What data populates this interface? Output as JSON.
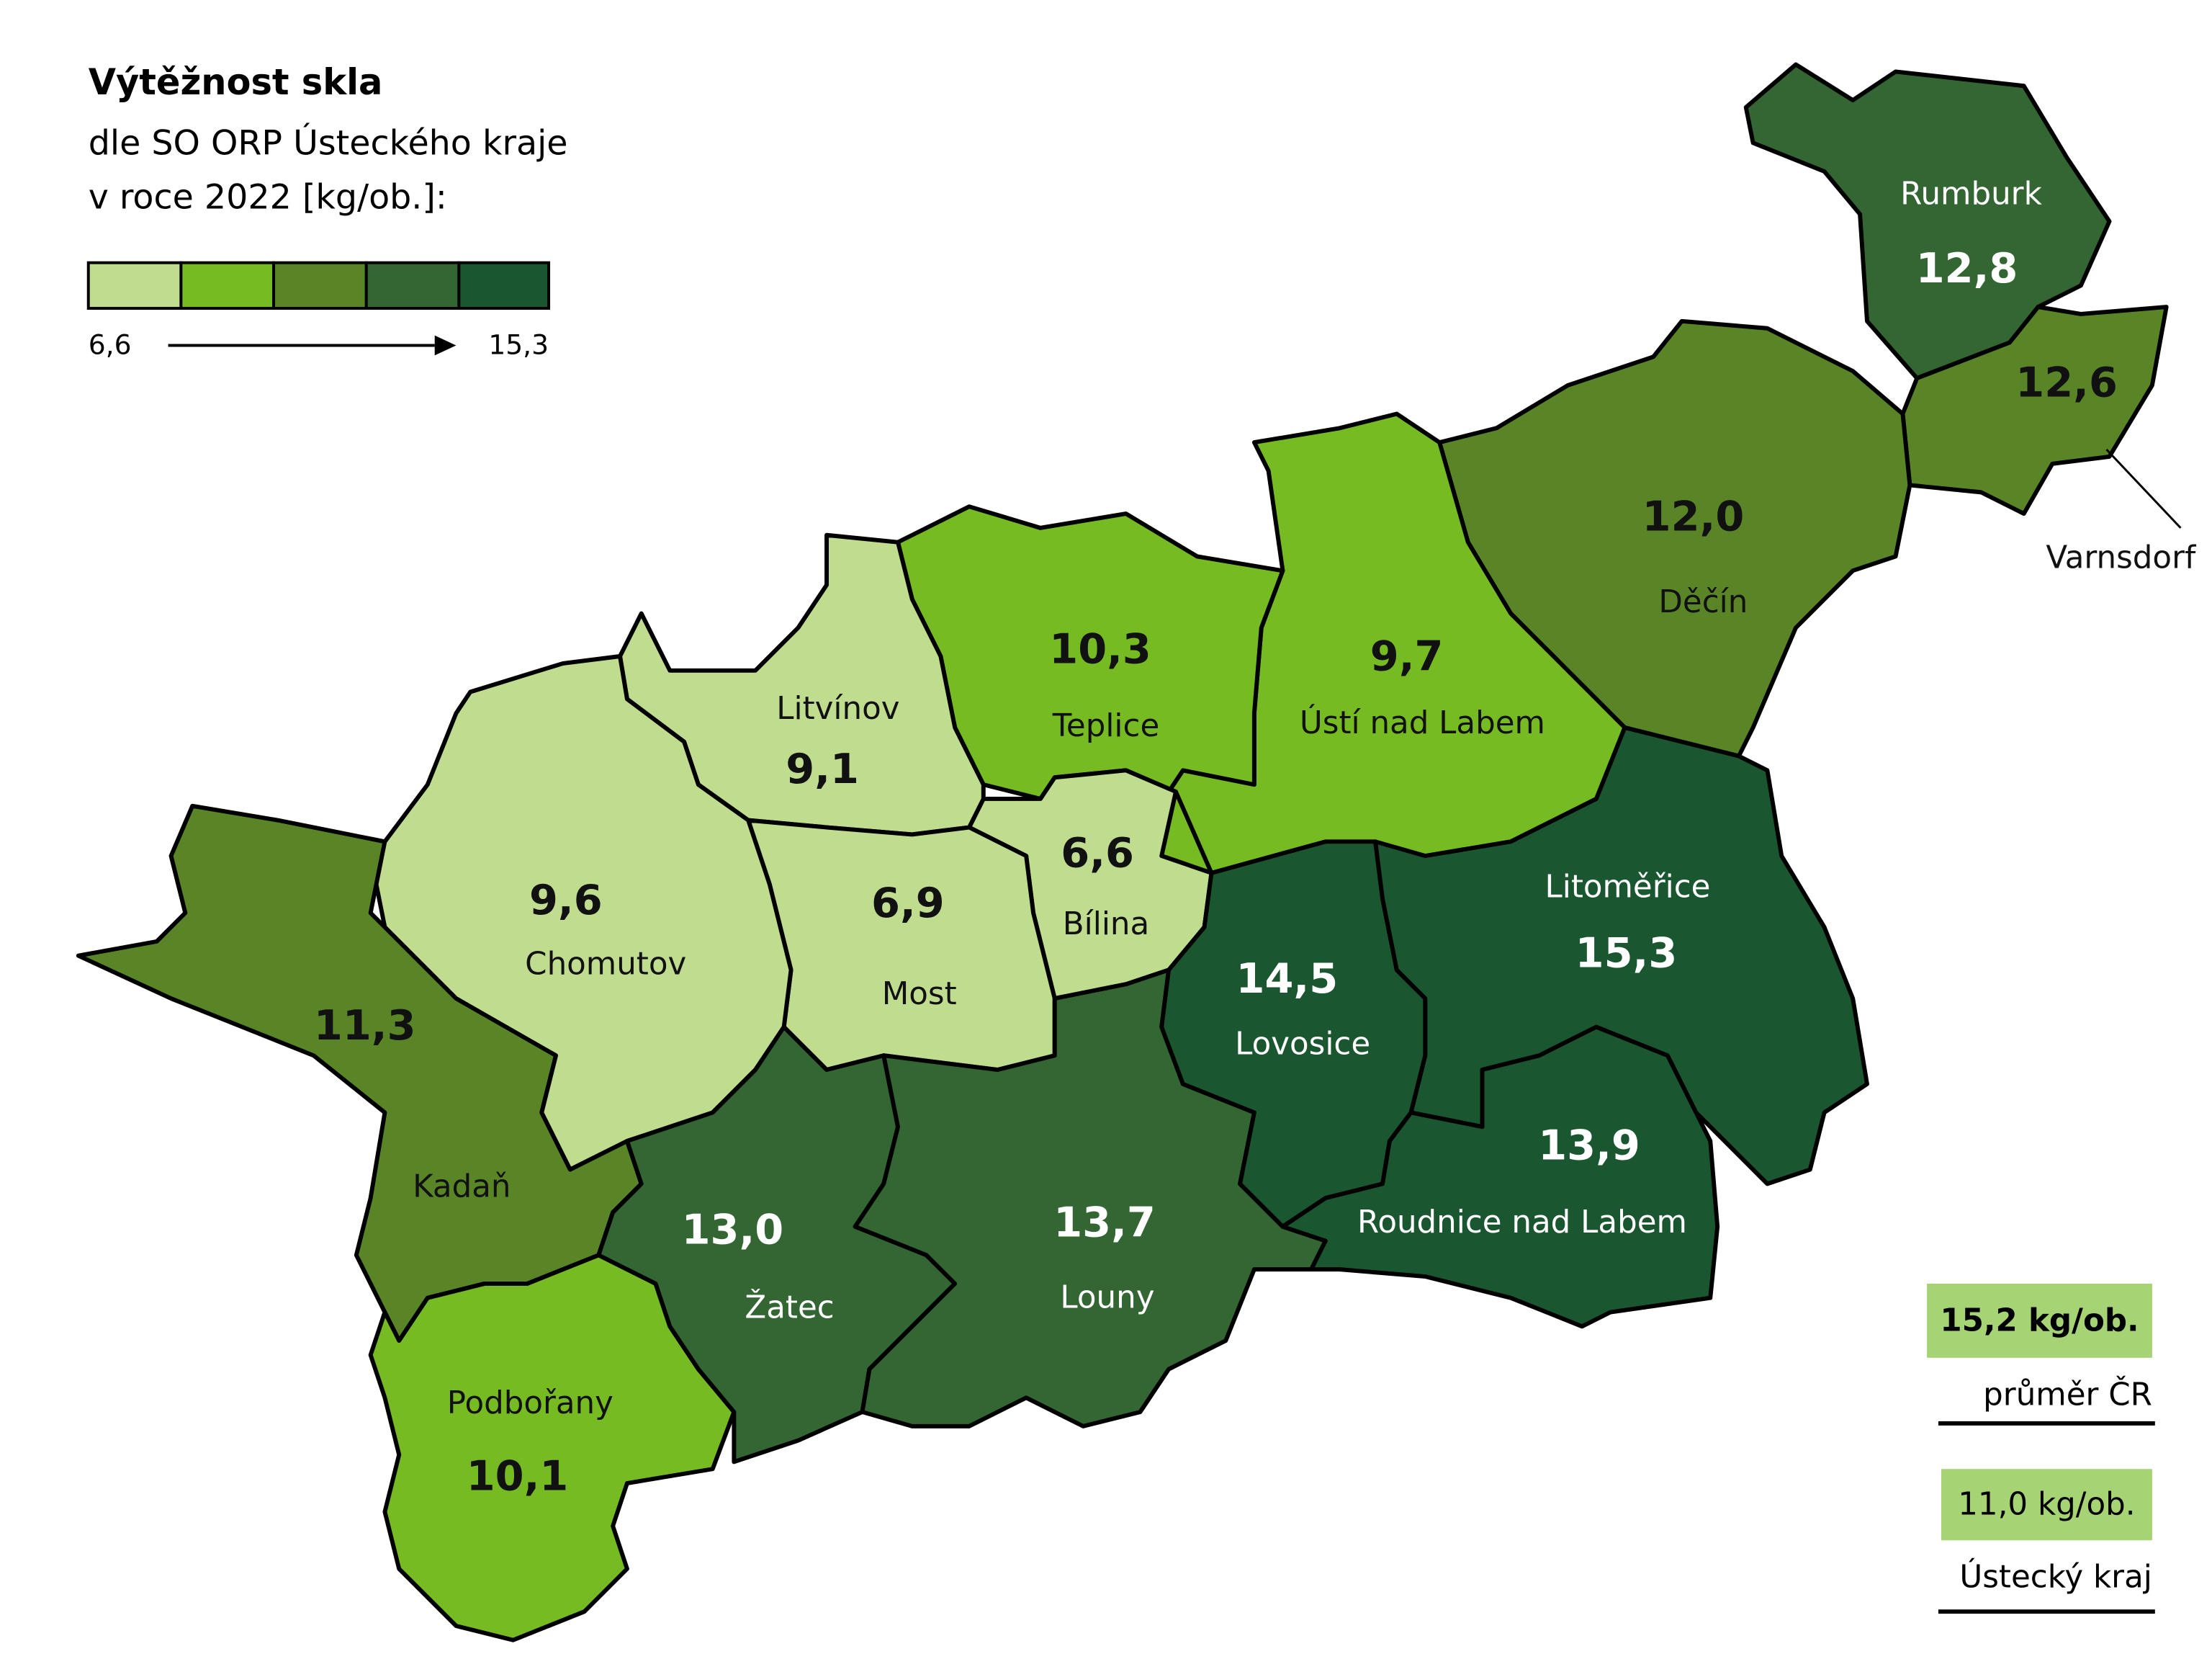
{
  "header": {
    "title": "Výtěžnost skla",
    "subtitle": [
      "dle SO ORP Ústeckého kraje",
      "v roce 2022 [kg/ob.]:"
    ]
  },
  "legend": {
    "colors": [
      "#c0dc8e",
      "#76bb22",
      "#5a8526",
      "#336633",
      "#1a5630"
    ],
    "min": "6,6",
    "max": "15,3"
  },
  "regions": [
    {
      "name": "Rumburk",
      "value": "12,8",
      "color": "#336633"
    },
    {
      "name": "Varnsdorf",
      "value": "12,6",
      "color": "#5a8526"
    },
    {
      "name": "Děčín",
      "value": "12,0",
      "color": "#5a8526"
    },
    {
      "name": "Ústí nad Labem",
      "value": "9,7",
      "color": "#76bb22"
    },
    {
      "name": "Teplice",
      "value": "10,3",
      "color": "#76bb22"
    },
    {
      "name": "Bílina",
      "value": "6,6",
      "color": "#c0dc8e"
    },
    {
      "name": "Litvínov",
      "value": "9,1",
      "color": "#c0dc8e"
    },
    {
      "name": "Most",
      "value": "6,9",
      "color": "#c0dc8e"
    },
    {
      "name": "Chomutov",
      "value": "9,6",
      "color": "#c0dc8e"
    },
    {
      "name": "Kadaň",
      "value": "11,3",
      "color": "#5a8526"
    },
    {
      "name": "Podbořany",
      "value": "10,1",
      "color": "#76bb22"
    },
    {
      "name": "Žatec",
      "value": "13,0",
      "color": "#336633"
    },
    {
      "name": "Louny",
      "value": "13,7",
      "color": "#336633"
    },
    {
      "name": "Lovosice",
      "value": "14,5",
      "color": "#1a5630"
    },
    {
      "name": "Litoměřice",
      "value": "15,3",
      "color": "#1a5630"
    },
    {
      "name": "Roudnice nad Labem",
      "value": "13,9",
      "color": "#1a5630"
    }
  ],
  "summary": [
    {
      "label": "15,2 kg/ob.",
      "caption": "průměr ČR",
      "color": "#a6d374"
    },
    {
      "label": "11,0 kg/ob.",
      "caption": "Ústecký kraj",
      "color": "#a6d374"
    }
  ]
}
